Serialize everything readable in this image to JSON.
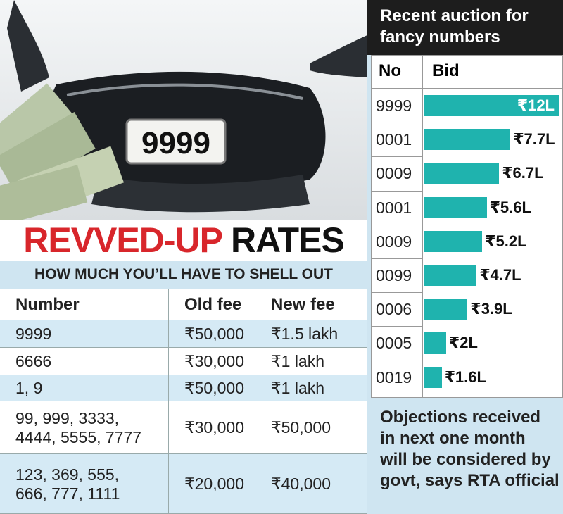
{
  "photo": {
    "plate_text": "9999"
  },
  "headline": {
    "part1": "REVVED-UP",
    "part2": "RATES"
  },
  "subheadline": "HOW MUCH YOU’LL HAVE TO SHELL OUT",
  "table": {
    "columns": [
      "Number",
      "Old fee",
      "New fee"
    ],
    "rows": [
      [
        "9999",
        "₹50,000",
        "₹1.5 lakh"
      ],
      [
        "6666",
        "₹30,000",
        "₹1 lakh"
      ],
      [
        "1, 9",
        "₹50,000",
        "₹1 lakh"
      ],
      [
        "99, 999, 3333,\n4444, 5555, 7777",
        "₹30,000",
        "₹50,000"
      ],
      [
        "123, 369, 555,\n666, 777, 1111",
        "₹20,000",
        "₹40,000"
      ]
    ]
  },
  "chart_data": {
    "type": "bar",
    "title": "Recent auction for\nfancy numbers",
    "column_headers": [
      "No",
      "Bid"
    ],
    "categories": [
      "9999",
      "0001",
      "0009",
      "0001",
      "0009",
      "0099",
      "0006",
      "0005",
      "0019"
    ],
    "values": [
      12,
      7.7,
      6.7,
      5.6,
      5.2,
      4.7,
      3.9,
      2,
      1.6
    ],
    "value_labels": [
      "₹12L",
      "₹7.7L",
      "₹6.7L",
      "₹5.6L",
      "₹5.2L",
      "₹4.7L",
      "₹3.9L",
      "₹2L",
      "₹1.6L"
    ],
    "color": "#1fb3ae"
  },
  "note": "Objections received\nin next one month\nwill be considered by\ngovt, says RTA official"
}
